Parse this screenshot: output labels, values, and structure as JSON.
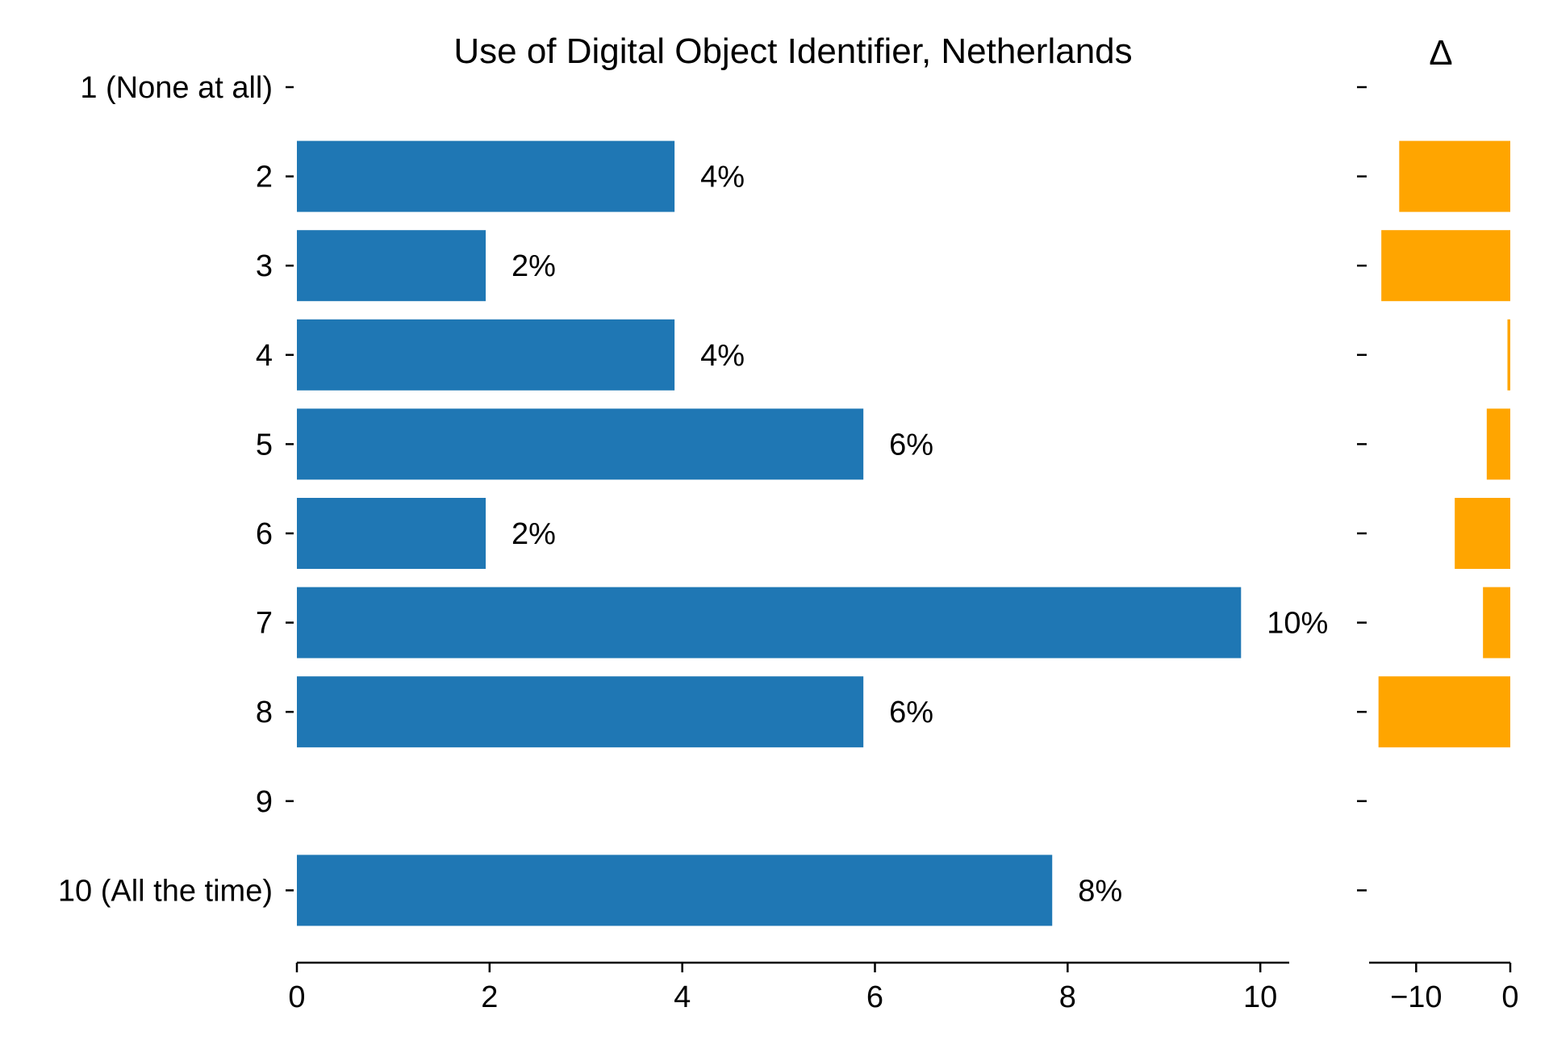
{
  "chart_data": [
    {
      "type": "bar",
      "orientation": "horizontal",
      "title": "Use of Digital Object Identifier, Netherlands",
      "xlabel": "",
      "ylabel": "",
      "categories": [
        "1 (None at all)",
        "2",
        "3",
        "4",
        "5",
        "6",
        "7",
        "8",
        "9",
        "10 (All the time)"
      ],
      "values": [
        0,
        3.92,
        1.96,
        3.92,
        5.88,
        1.96,
        9.8,
        5.88,
        0,
        7.84
      ],
      "value_labels": [
        "",
        "4%",
        "2%",
        "4%",
        "6%",
        "2%",
        "10%",
        "6%",
        "",
        "8%"
      ],
      "xlim": [
        0,
        10.3
      ],
      "xticks": [
        0,
        2,
        4,
        6,
        8,
        10
      ],
      "xtick_labels": [
        "0",
        "2",
        "4",
        "6",
        "8",
        "10"
      ],
      "bar_color": "#1f77b4",
      "grid": false,
      "legend": "none"
    },
    {
      "type": "bar",
      "orientation": "horizontal",
      "title": "Δ",
      "xlabel": "",
      "ylabel": "",
      "categories": [
        "1 (None at all)",
        "2",
        "3",
        "4",
        "5",
        "6",
        "7",
        "8",
        "9",
        "10 (All the time)"
      ],
      "values": [
        0,
        -11.8,
        -13.7,
        -0.3,
        -2.5,
        -5.9,
        -2.9,
        -14.0,
        0,
        0
      ],
      "xlim": [
        -15,
        0
      ],
      "xticks": [
        -10,
        0
      ],
      "xtick_labels": [
        "−10",
        "0"
      ],
      "bar_color": "#ffa500",
      "grid": false,
      "legend": "none"
    }
  ]
}
